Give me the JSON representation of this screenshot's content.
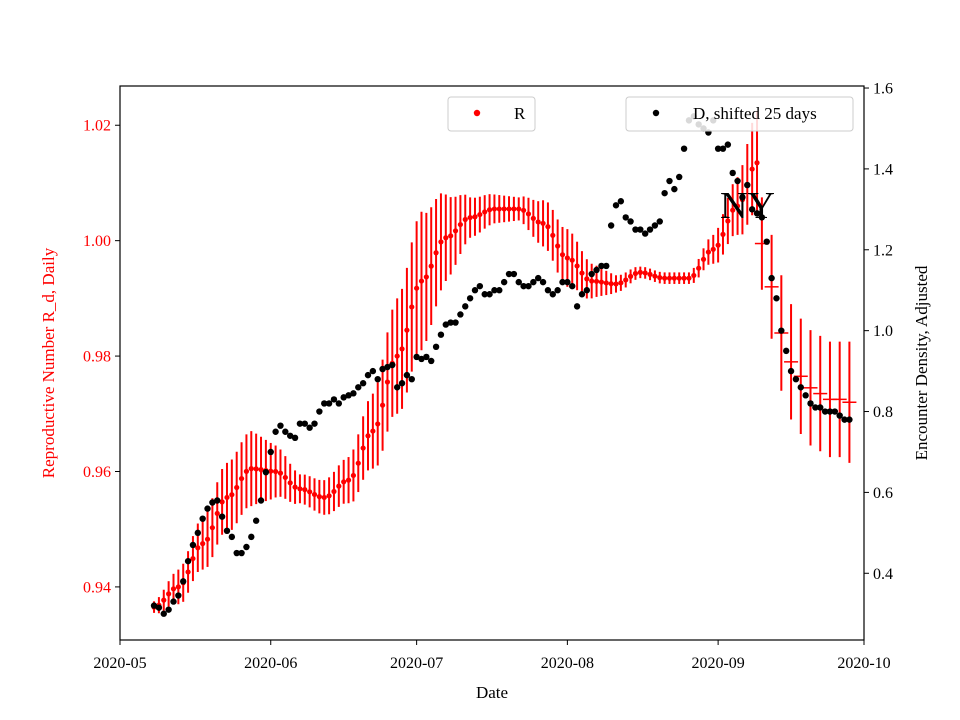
{
  "chart_data": {
    "type": "scatter",
    "annotation": "NY",
    "xlabel": "Date",
    "ylabel_left": "Reproductive Number R_d, Daily",
    "ylabel_right": "Encounter Density, Adjusted",
    "xlim": [
      "2020-05-01",
      "2020-10-01"
    ],
    "ylim_left": [
      0.9308,
      1.0268
    ],
    "ylim_right": [
      0.235,
      1.605
    ],
    "x_ticks": [
      {
        "date": "2020-05-01",
        "label": "2020-05"
      },
      {
        "date": "2020-06-01",
        "label": "2020-06"
      },
      {
        "date": "2020-07-01",
        "label": "2020-07"
      },
      {
        "date": "2020-08-01",
        "label": "2020-08"
      },
      {
        "date": "2020-09-01",
        "label": "2020-09"
      },
      {
        "date": "2020-10-01",
        "label": "2020-10"
      }
    ],
    "y_ticks_left": [
      "0.94",
      "0.96",
      "0.98",
      "1.00",
      "1.02"
    ],
    "y_ticks_right": [
      "0.4",
      "0.6",
      "0.8",
      "1.0",
      "1.2",
      "1.4",
      "1.6"
    ],
    "left_axis_color": "#ff0000",
    "right_axis_color": "#000000",
    "grid": false,
    "legends": [
      {
        "label": "R",
        "color": "#ff0000",
        "position": "upper-center"
      },
      {
        "label": "D, shifted 25 days",
        "color": "#000000",
        "position": "upper-right"
      }
    ],
    "series": [
      {
        "name": "R",
        "axis": "left",
        "color": "#ff0000",
        "error_bars": true,
        "start_date": "2020-05-08",
        "end_date": "2020-09-09",
        "knots": [
          {
            "date": "2020-05-08",
            "value": 0.9365,
            "err": 0.001
          },
          {
            "date": "2020-05-13",
            "value": 0.94,
            "err": 0.003
          },
          {
            "date": "2020-05-18",
            "value": 0.9475,
            "err": 0.0045
          },
          {
            "date": "2020-05-23",
            "value": 0.9555,
            "err": 0.006
          },
          {
            "date": "2020-05-28",
            "value": 0.9605,
            "err": 0.0065
          },
          {
            "date": "2020-06-02",
            "value": 0.96,
            "err": 0.0045
          },
          {
            "date": "2020-06-07",
            "value": 0.957,
            "err": 0.0025
          },
          {
            "date": "2020-06-12",
            "value": 0.9555,
            "err": 0.003
          },
          {
            "date": "2020-06-17",
            "value": 0.9585,
            "err": 0.004
          },
          {
            "date": "2020-06-22",
            "value": 0.967,
            "err": 0.0065
          },
          {
            "date": "2020-06-27",
            "value": 0.98,
            "err": 0.01
          },
          {
            "date": "2020-07-02",
            "value": 0.993,
            "err": 0.012
          },
          {
            "date": "2020-07-07",
            "value": 1.0005,
            "err": 0.0075
          },
          {
            "date": "2020-07-12",
            "value": 1.004,
            "err": 0.0035
          },
          {
            "date": "2020-07-17",
            "value": 1.0055,
            "err": 0.0025
          },
          {
            "date": "2020-07-22",
            "value": 1.0055,
            "err": 0.002
          },
          {
            "date": "2020-07-27",
            "value": 1.003,
            "err": 0.004
          },
          {
            "date": "2020-08-01",
            "value": 0.997,
            "err": 0.005
          },
          {
            "date": "2020-08-06",
            "value": 0.993,
            "err": 0.003
          },
          {
            "date": "2020-08-11",
            "value": 0.9925,
            "err": 0.0015
          },
          {
            "date": "2020-08-16",
            "value": 0.9945,
            "err": 0.001
          },
          {
            "date": "2020-08-21",
            "value": 0.9935,
            "err": 0.001
          },
          {
            "date": "2020-08-26",
            "value": 0.9935,
            "err": 0.001
          },
          {
            "date": "2020-08-31",
            "value": 0.9985,
            "err": 0.0025
          },
          {
            "date": "2020-09-05",
            "value": 1.006,
            "err": 0.005
          },
          {
            "date": "2020-09-09",
            "value": 1.0135,
            "err": 0.009
          }
        ],
        "tail_points": [
          {
            "date": "2020-09-10",
            "value": 0.9995,
            "err": 0.008
          },
          {
            "date": "2020-09-12",
            "value": 0.992,
            "err": 0.009
          },
          {
            "date": "2020-09-14",
            "value": 0.984,
            "err": 0.01
          },
          {
            "date": "2020-09-16",
            "value": 0.979,
            "err": 0.01
          },
          {
            "date": "2020-09-18",
            "value": 0.9765,
            "err": 0.01
          },
          {
            "date": "2020-09-20",
            "value": 0.9745,
            "err": 0.01
          },
          {
            "date": "2020-09-22",
            "value": 0.9735,
            "err": 0.01
          },
          {
            "date": "2020-09-24",
            "value": 0.9725,
            "err": 0.01
          },
          {
            "date": "2020-09-26",
            "value": 0.9725,
            "err": 0.01
          },
          {
            "date": "2020-09-28",
            "value": 0.972,
            "err": 0.0105
          }
        ]
      },
      {
        "name": "D, shifted 25 days",
        "axis": "right",
        "color": "#000000",
        "points": [
          [
            "2020-05-08",
            0.32
          ],
          [
            "2020-05-09",
            0.315
          ],
          [
            "2020-05-10",
            0.3
          ],
          [
            "2020-05-11",
            0.31
          ],
          [
            "2020-05-12",
            0.33
          ],
          [
            "2020-05-13",
            0.345
          ],
          [
            "2020-05-14",
            0.38
          ],
          [
            "2020-05-15",
            0.43
          ],
          [
            "2020-05-16",
            0.47
          ],
          [
            "2020-05-17",
            0.5
          ],
          [
            "2020-05-18",
            0.535
          ],
          [
            "2020-05-19",
            0.56
          ],
          [
            "2020-05-20",
            0.575
          ],
          [
            "2020-05-21",
            0.58
          ],
          [
            "2020-05-22",
            0.54
          ],
          [
            "2020-05-23",
            0.505
          ],
          [
            "2020-05-24",
            0.49
          ],
          [
            "2020-05-25",
            0.45
          ],
          [
            "2020-05-26",
            0.45
          ],
          [
            "2020-05-27",
            0.465
          ],
          [
            "2020-05-28",
            0.49
          ],
          [
            "2020-05-29",
            0.53
          ],
          [
            "2020-05-30",
            0.58
          ],
          [
            "2020-05-31",
            0.65
          ],
          [
            "2020-06-01",
            0.7
          ],
          [
            "2020-06-02",
            0.75
          ],
          [
            "2020-06-03",
            0.765
          ],
          [
            "2020-06-04",
            0.75
          ],
          [
            "2020-06-05",
            0.74
          ],
          [
            "2020-06-06",
            0.735
          ],
          [
            "2020-06-07",
            0.77
          ],
          [
            "2020-06-08",
            0.77
          ],
          [
            "2020-06-09",
            0.76
          ],
          [
            "2020-06-10",
            0.77
          ],
          [
            "2020-06-11",
            0.8
          ],
          [
            "2020-06-12",
            0.82
          ],
          [
            "2020-06-13",
            0.82
          ],
          [
            "2020-06-14",
            0.83
          ],
          [
            "2020-06-15",
            0.82
          ],
          [
            "2020-06-16",
            0.835
          ],
          [
            "2020-06-17",
            0.84
          ],
          [
            "2020-06-18",
            0.845
          ],
          [
            "2020-06-19",
            0.86
          ],
          [
            "2020-06-20",
            0.87
          ],
          [
            "2020-06-21",
            0.89
          ],
          [
            "2020-06-22",
            0.9
          ],
          [
            "2020-06-23",
            0.88
          ],
          [
            "2020-06-24",
            0.905
          ],
          [
            "2020-06-25",
            0.91
          ],
          [
            "2020-06-26",
            0.915
          ],
          [
            "2020-06-27",
            0.86
          ],
          [
            "2020-06-28",
            0.87
          ],
          [
            "2020-06-29",
            0.89
          ],
          [
            "2020-06-30",
            0.88
          ],
          [
            "2020-07-01",
            0.935
          ],
          [
            "2020-07-02",
            0.93
          ],
          [
            "2020-07-03",
            0.935
          ],
          [
            "2020-07-04",
            0.925
          ],
          [
            "2020-07-05",
            0.96
          ],
          [
            "2020-07-06",
            0.99
          ],
          [
            "2020-07-07",
            1.015
          ],
          [
            "2020-07-08",
            1.02
          ],
          [
            "2020-07-09",
            1.02
          ],
          [
            "2020-07-10",
            1.04
          ],
          [
            "2020-07-11",
            1.06
          ],
          [
            "2020-07-12",
            1.08
          ],
          [
            "2020-07-13",
            1.1
          ],
          [
            "2020-07-14",
            1.11
          ],
          [
            "2020-07-15",
            1.09
          ],
          [
            "2020-07-16",
            1.09
          ],
          [
            "2020-07-17",
            1.1
          ],
          [
            "2020-07-18",
            1.1
          ],
          [
            "2020-07-19",
            1.12
          ],
          [
            "2020-07-20",
            1.14
          ],
          [
            "2020-07-21",
            1.14
          ],
          [
            "2020-07-22",
            1.12
          ],
          [
            "2020-07-23",
            1.11
          ],
          [
            "2020-07-24",
            1.11
          ],
          [
            "2020-07-25",
            1.12
          ],
          [
            "2020-07-26",
            1.13
          ],
          [
            "2020-07-27",
            1.12
          ],
          [
            "2020-07-28",
            1.1
          ],
          [
            "2020-07-29",
            1.09
          ],
          [
            "2020-07-30",
            1.1
          ],
          [
            "2020-07-31",
            1.12
          ],
          [
            "2020-08-01",
            1.12
          ],
          [
            "2020-08-02",
            1.11
          ],
          [
            "2020-08-03",
            1.06
          ],
          [
            "2020-08-04",
            1.09
          ],
          [
            "2020-08-05",
            1.1
          ],
          [
            "2020-08-06",
            1.14
          ],
          [
            "2020-08-07",
            1.15
          ],
          [
            "2020-08-08",
            1.16
          ],
          [
            "2020-08-09",
            1.16
          ],
          [
            "2020-08-10",
            1.26
          ],
          [
            "2020-08-11",
            1.31
          ],
          [
            "2020-08-12",
            1.32
          ],
          [
            "2020-08-13",
            1.28
          ],
          [
            "2020-08-14",
            1.27
          ],
          [
            "2020-08-15",
            1.25
          ],
          [
            "2020-08-16",
            1.25
          ],
          [
            "2020-08-17",
            1.24
          ],
          [
            "2020-08-18",
            1.25
          ],
          [
            "2020-08-19",
            1.26
          ],
          [
            "2020-08-20",
            1.27
          ],
          [
            "2020-08-21",
            1.34
          ],
          [
            "2020-08-22",
            1.37
          ],
          [
            "2020-08-23",
            1.35
          ],
          [
            "2020-08-24",
            1.38
          ],
          [
            "2020-08-25",
            1.45
          ],
          [
            "2020-08-26",
            1.52
          ],
          [
            "2020-08-27",
            1.53
          ],
          [
            "2020-08-28",
            1.51
          ],
          [
            "2020-08-29",
            1.5
          ],
          [
            "2020-08-30",
            1.49
          ],
          [
            "2020-08-31",
            1.52
          ],
          [
            "2020-09-01",
            1.45
          ],
          [
            "2020-09-02",
            1.45
          ],
          [
            "2020-09-03",
            1.46
          ],
          [
            "2020-09-04",
            1.39
          ],
          [
            "2020-09-05",
            1.37
          ],
          [
            "2020-09-06",
            1.33
          ],
          [
            "2020-09-07",
            1.36
          ],
          [
            "2020-09-08",
            1.3
          ],
          [
            "2020-09-09",
            1.29
          ],
          [
            "2020-09-10",
            1.28
          ],
          [
            "2020-09-11",
            1.22
          ],
          [
            "2020-09-12",
            1.13
          ],
          [
            "2020-09-13",
            1.08
          ],
          [
            "2020-09-14",
            1.0
          ],
          [
            "2020-09-15",
            0.95
          ],
          [
            "2020-09-16",
            0.9
          ],
          [
            "2020-09-17",
            0.88
          ],
          [
            "2020-09-18",
            0.86
          ],
          [
            "2020-09-19",
            0.84
          ],
          [
            "2020-09-20",
            0.82
          ],
          [
            "2020-09-21",
            0.81
          ],
          [
            "2020-09-22",
            0.81
          ],
          [
            "2020-09-23",
            0.8
          ],
          [
            "2020-09-24",
            0.8
          ],
          [
            "2020-09-25",
            0.8
          ],
          [
            "2020-09-26",
            0.79
          ],
          [
            "2020-09-27",
            0.78
          ],
          [
            "2020-09-28",
            0.78
          ]
        ]
      }
    ]
  }
}
